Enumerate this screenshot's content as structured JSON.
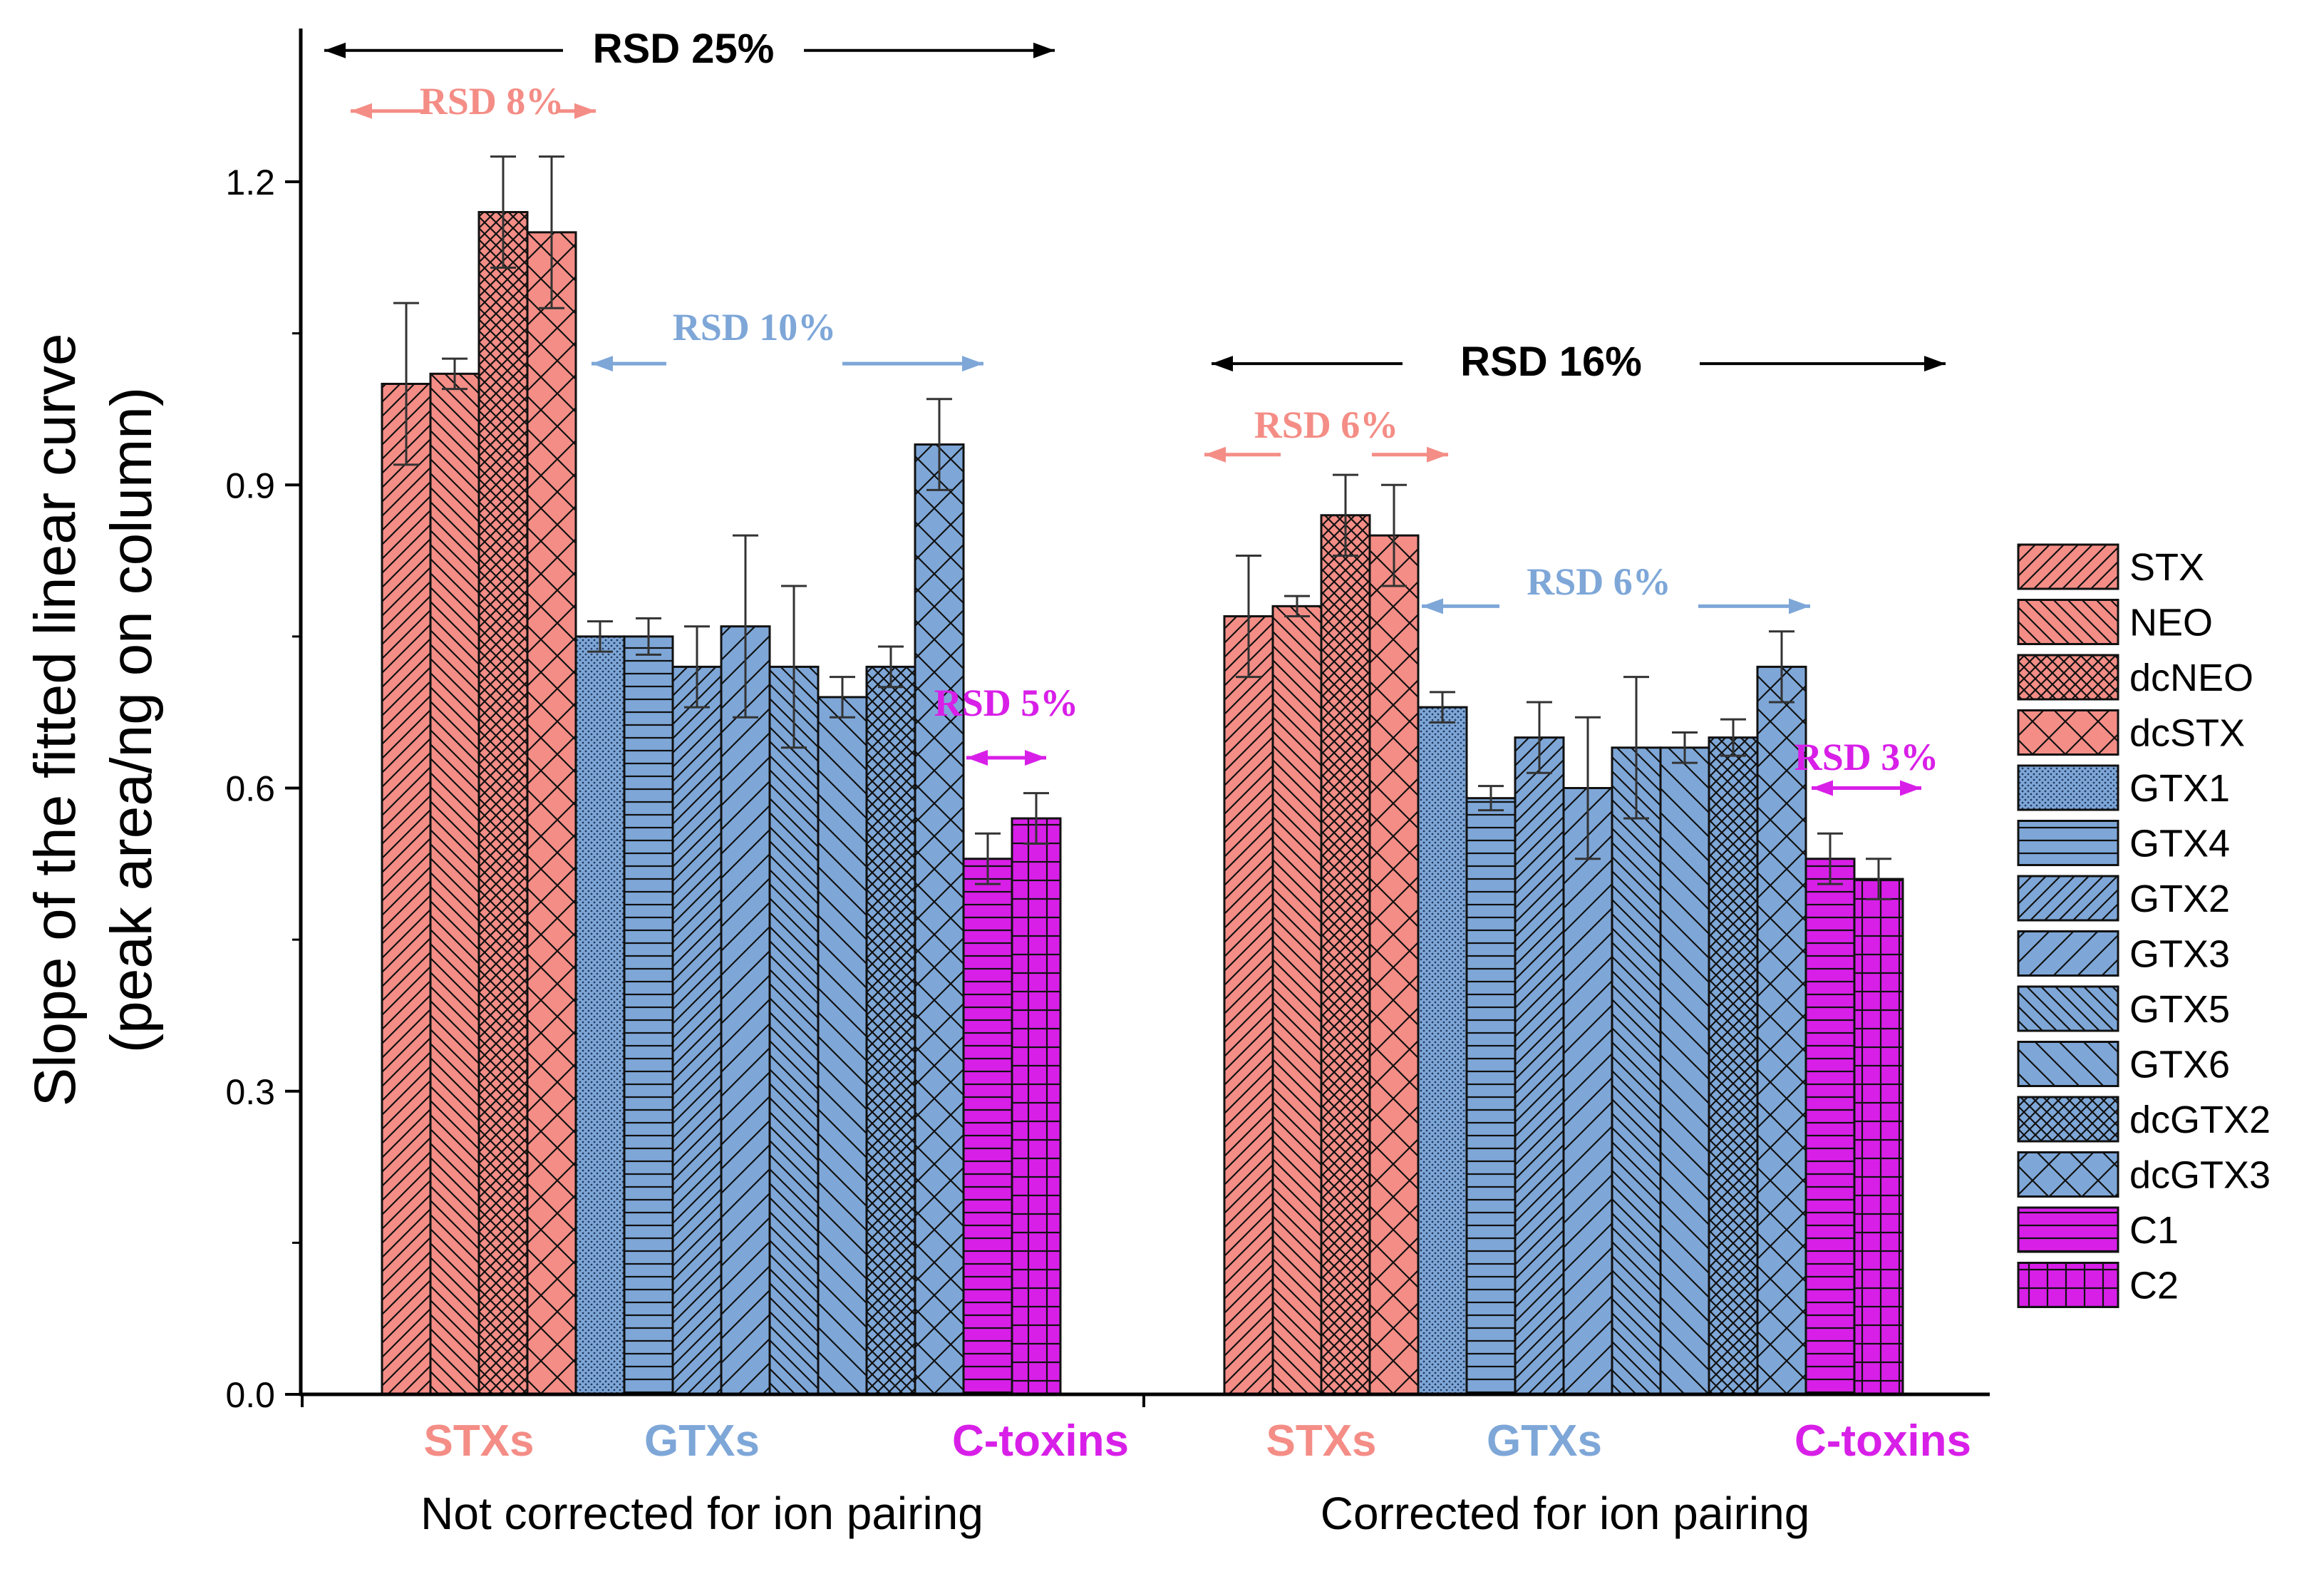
{
  "chart_data": {
    "type": "bar",
    "xlabel": "",
    "ylabel_line1": "Slope of the fitted linear curve",
    "ylabel_line2": "(peak area/ng on column)",
    "ylim": [
      0,
      1.35
    ],
    "yticks": [
      {
        "value": 0.0,
        "label": "0.0"
      },
      {
        "value": 0.3,
        "label": "0.3"
      },
      {
        "value": 0.6,
        "label": "0.6"
      },
      {
        "value": 0.9,
        "label": "0.9"
      },
      {
        "value": 1.2,
        "label": "1.2"
      }
    ],
    "grid": false,
    "legend_position": "right",
    "colors": {
      "STXs": "#f48d86",
      "GTXs": "#7ea7d8",
      "C-toxins": "#d81fe8",
      "black": "#000000"
    },
    "series": [
      {
        "name": "STX",
        "family": "STXs",
        "pattern": "fdiag"
      },
      {
        "name": "NEO",
        "family": "STXs",
        "pattern": "bdiag"
      },
      {
        "name": "dcNEO",
        "family": "STXs",
        "pattern": "dcross"
      },
      {
        "name": "dcSTX",
        "family": "STXs",
        "pattern": "wcross"
      },
      {
        "name": "GTX1",
        "family": "GTXs",
        "pattern": "dots"
      },
      {
        "name": "GTX4",
        "family": "GTXs",
        "pattern": "hlines"
      },
      {
        "name": "GTX2",
        "family": "GTXs",
        "pattern": "fdiag"
      },
      {
        "name": "GTX3",
        "family": "GTXs",
        "pattern": "wfdiag"
      },
      {
        "name": "GTX5",
        "family": "GTXs",
        "pattern": "bdiag"
      },
      {
        "name": "GTX6",
        "family": "GTXs",
        "pattern": "wbdiag"
      },
      {
        "name": "dcGTX2",
        "family": "GTXs",
        "pattern": "dcross"
      },
      {
        "name": "dcGTX3",
        "family": "GTXs",
        "pattern": "wcross"
      },
      {
        "name": "C1",
        "family": "C-toxins",
        "pattern": "hlines"
      },
      {
        "name": "C2",
        "family": "C-toxins",
        "pattern": "grid"
      }
    ],
    "groups": [
      {
        "label": "Not corrected for ion pairing",
        "families": [
          {
            "label": "STXs",
            "family": "STXs"
          },
          {
            "label": "GTXs",
            "family": "GTXs"
          },
          {
            "label": "C-toxins",
            "family": "C-toxins"
          }
        ],
        "values": [
          1.0,
          1.01,
          1.17,
          1.15,
          0.75,
          0.75,
          0.72,
          0.76,
          0.72,
          0.69,
          0.72,
          0.94,
          0.53,
          0.57
        ],
        "errors": [
          0.08,
          0.015,
          0.055,
          0.075,
          0.015,
          0.018,
          0.04,
          0.09,
          0.08,
          0.02,
          0.02,
          0.045,
          0.025,
          0.025
        ]
      },
      {
        "label": "Corrected for ion pairing",
        "families": [
          {
            "label": "STXs",
            "family": "STXs"
          },
          {
            "label": "GTXs",
            "family": "GTXs"
          },
          {
            "label": "C-toxins",
            "family": "C-toxins"
          }
        ],
        "values": [
          0.77,
          0.78,
          0.87,
          0.85,
          0.68,
          0.59,
          0.65,
          0.6,
          0.64,
          0.64,
          0.65,
          0.72,
          0.53,
          0.51
        ],
        "errors": [
          0.06,
          0.01,
          0.04,
          0.05,
          0.015,
          0.012,
          0.035,
          0.07,
          0.07,
          0.015,
          0.018,
          0.035,
          0.025,
          0.02
        ]
      }
    ],
    "annotations": [
      {
        "text": "RSD 25%",
        "group": 0,
        "from_bar": -2,
        "to_bar": 13.5,
        "y": 1.33,
        "color_key": "black",
        "style": "sans"
      },
      {
        "text": "RSD 8%",
        "group": 0,
        "from_bar": -0.6,
        "to_bar": 4.5,
        "y": 1.27,
        "color_key": "STXs",
        "style": "serif"
      },
      {
        "text": "RSD 10%",
        "group": 0,
        "from_bar": 3.5,
        "to_bar": 11.5,
        "y": 1.02,
        "color_key": "GTXs",
        "style": "serif"
      },
      {
        "text": "RSD 5%",
        "group": 0,
        "from_bar": 11.5,
        "to_bar": 14.5,
        "y": 0.63,
        "color_key": "C-toxins",
        "style": "serif"
      },
      {
        "text": "RSD 16%",
        "group": 1,
        "from_bar": -0.5,
        "to_bar": 14.5,
        "y": 1.02,
        "color_key": "black",
        "style": "sans"
      },
      {
        "text": "RSD 6%",
        "group": 1,
        "from_bar": -0.5,
        "to_bar": 3.5,
        "y": 0.93,
        "color_key": "STXs",
        "style": "serif"
      },
      {
        "text": "RSD 6%",
        "group": 1,
        "from_bar": 3.5,
        "to_bar": 11.5,
        "y": 0.78,
        "color_key": "GTXs",
        "style": "serif"
      },
      {
        "text": "RSD 3%",
        "group": 1,
        "from_bar": 11.5,
        "to_bar": 13.5,
        "y": 0.6,
        "color_key": "C-toxins",
        "style": "serif"
      }
    ]
  }
}
